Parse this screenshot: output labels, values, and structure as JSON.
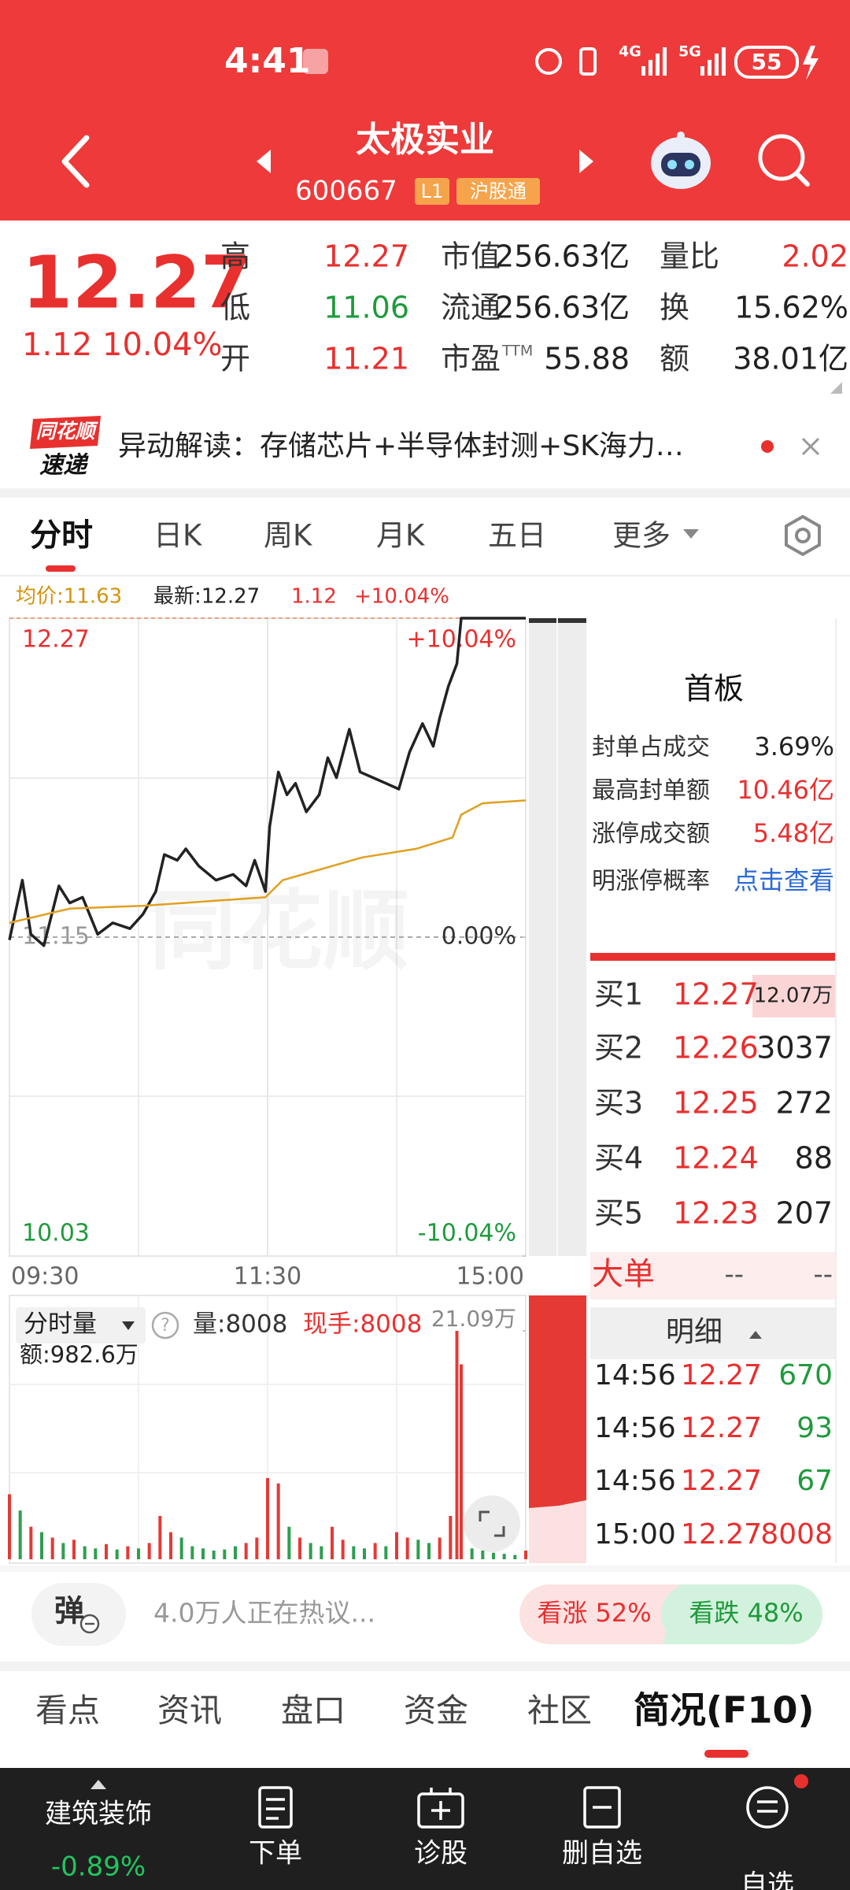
{
  "status_bar": {
    "time": "4:41",
    "network": [
      "4G",
      "5G"
    ],
    "battery": "55"
  },
  "header": {
    "title": "太极实业",
    "code": "600667",
    "level": "L1",
    "tag": "沪股通"
  },
  "quote": {
    "price": "12.27",
    "change": "1.12",
    "change_pct": "10.04%",
    "fields": [
      {
        "label": "高",
        "value": "12.27"
      },
      {
        "label": "低",
        "value": "11.06"
      },
      {
        "label": "开",
        "value": "11.21"
      },
      {
        "label": "市值",
        "value": "256.63亿"
      },
      {
        "label": "流通",
        "value": "256.63亿"
      },
      {
        "label": "市盈",
        "label_sup": "TTM",
        "value": "55.88"
      },
      {
        "label": "量比",
        "value": "2.02"
      },
      {
        "label": "换",
        "value": "15.62%"
      },
      {
        "label": "额",
        "value": "38.01亿"
      }
    ]
  },
  "banner": {
    "brand_top": "同花顺",
    "brand_bottom": "速递",
    "text": "异动解读：存储芯片+半导体封测+SK海力…"
  },
  "tabs": [
    "分时",
    "日K",
    "周K",
    "月K",
    "五日",
    "更多"
  ],
  "chart_info": {
    "avg": "均价:11.63",
    "latest": "最新:12.27",
    "change": "1.12",
    "change_pct": "+10.04%"
  },
  "chart_data": [
    {
      "type": "line",
      "watermark": "同花顺",
      "xlim": [
        0,
        240
      ],
      "xticks": [
        {
          "value": 0,
          "label": "09:30"
        },
        {
          "value": 120,
          "label": "11:30"
        },
        {
          "value": 240,
          "label": "15:00"
        }
      ],
      "ylim": [
        10.03,
        12.27
      ],
      "yticks": [
        12.27,
        11.15,
        10.03
      ],
      "y2lim": [
        -10.04,
        10.04
      ],
      "y2ticks": [
        {
          "value": 10.04,
          "label": "+10.04%"
        },
        {
          "value": 0,
          "label": "0.00%"
        },
        {
          "value": -10.04,
          "label": "-10.04%"
        }
      ],
      "series": [
        {
          "color": "#222222",
          "x": [
            0,
            6,
            10,
            16,
            23,
            28,
            34,
            41,
            48,
            56,
            62,
            68,
            72,
            78,
            82,
            88,
            96,
            104,
            110,
            114,
            119,
            121,
            125,
            129,
            133,
            138,
            144,
            148,
            152,
            158,
            163,
            169,
            175,
            181,
            186,
            192,
            197,
            200,
            204,
            208,
            210,
            240
          ],
          "values": [
            11.14,
            11.35,
            11.16,
            11.12,
            11.33,
            11.27,
            11.29,
            11.16,
            11.2,
            11.18,
            11.23,
            11.31,
            11.44,
            11.42,
            11.46,
            11.4,
            11.35,
            11.37,
            11.33,
            11.42,
            11.31,
            11.54,
            11.73,
            11.65,
            11.69,
            11.59,
            11.65,
            11.78,
            11.71,
            11.88,
            11.73,
            11.71,
            11.69,
            11.67,
            11.8,
            11.9,
            11.82,
            11.92,
            12.03,
            12.11,
            12.27,
            12.27
          ]
        },
        {
          "color": "#e0a020",
          "x": [
            0,
            28,
            62,
            119,
            127,
            164,
            189,
            206,
            210,
            220,
            240
          ],
          "values": [
            11.2,
            11.25,
            11.26,
            11.29,
            11.35,
            11.43,
            11.46,
            11.5,
            11.58,
            11.62,
            11.63
          ]
        }
      ]
    },
    {
      "type": "bar",
      "xlim": [
        0,
        240
      ],
      "ylim": [
        0,
        210900
      ],
      "yticks": [
        {
          "value": 210900,
          "label": "21.09万"
        }
      ],
      "series": [
        {
          "color": "#e53935",
          "x": [
            0,
            10,
            20,
            30,
            45,
            55,
            65,
            70,
            75,
            110,
            115,
            120,
            125,
            135,
            150,
            155,
            170,
            180,
            185,
            200,
            205,
            208,
            210,
            240
          ],
          "values": [
            60000,
            30000,
            20000,
            18000,
            14000,
            12000,
            15000,
            40000,
            25000,
            15000,
            20000,
            75000,
            70000,
            20000,
            30000,
            18000,
            15000,
            25000,
            20000,
            20000,
            40000,
            210900,
            180000,
            8008
          ]
        },
        {
          "color": "#2e9e4f",
          "x": [
            5,
            15,
            25,
            35,
            40,
            50,
            60,
            80,
            85,
            90,
            95,
            100,
            105,
            130,
            140,
            145,
            160,
            165,
            175,
            190,
            195,
            215,
            220,
            225,
            230,
            235
          ],
          "values": [
            45000,
            25000,
            15000,
            12000,
            10000,
            9000,
            10000,
            20000,
            12000,
            10000,
            8000,
            9000,
            12000,
            30000,
            15000,
            12000,
            12000,
            10000,
            12000,
            18000,
            15000,
            10000,
            8000,
            6000,
            5000,
            4000
          ]
        }
      ]
    }
  ],
  "volume_info": {
    "selector": "分时量",
    "help": "?",
    "volume": "量:8008",
    "current": "现手:8008",
    "amount": "额:982.6万"
  },
  "limit_panel": {
    "title": "首板",
    "stats": [
      {
        "label": "封单占成交",
        "value": "3.69%"
      },
      {
        "label": "最高封单额",
        "value": "10.46亿"
      },
      {
        "label": "涨停成交额",
        "value": "5.48亿"
      }
    ],
    "probability_label": "明涨停概率",
    "probability_link": "点击查看"
  },
  "order_book": [
    {
      "label": "买1",
      "price": "12.27",
      "volume": "12.07万"
    },
    {
      "label": "买2",
      "price": "12.26",
      "volume": "3037"
    },
    {
      "label": "买3",
      "price": "12.25",
      "volume": "272"
    },
    {
      "label": "买4",
      "price": "12.24",
      "volume": "88"
    },
    {
      "label": "买5",
      "price": "12.23",
      "volume": "207"
    }
  ],
  "big_order": {
    "label": "大单",
    "buy": "--",
    "sell": "--"
  },
  "detail": {
    "title": "明细",
    "rows": [
      {
        "time": "14:56",
        "price": "12.27",
        "volume": "670"
      },
      {
        "time": "14:56",
        "price": "12.27",
        "volume": "93"
      },
      {
        "time": "14:56",
        "price": "12.27",
        "volume": "67"
      },
      {
        "time": "15:00",
        "price": "12.27",
        "volume": "8008"
      }
    ]
  },
  "discussion": {
    "button": "弹",
    "text": "4.0万人正在热议...",
    "bull": "看涨 52%",
    "bear": "看跌 48%"
  },
  "bottom_tabs": [
    "看点",
    "资讯",
    "盘口",
    "资金",
    "社区",
    "简况(F10)"
  ],
  "nav": {
    "sector": "建筑装饰",
    "sector_change": "-0.89%",
    "items": [
      "下单",
      "诊股",
      "删自选",
      "自选"
    ]
  }
}
